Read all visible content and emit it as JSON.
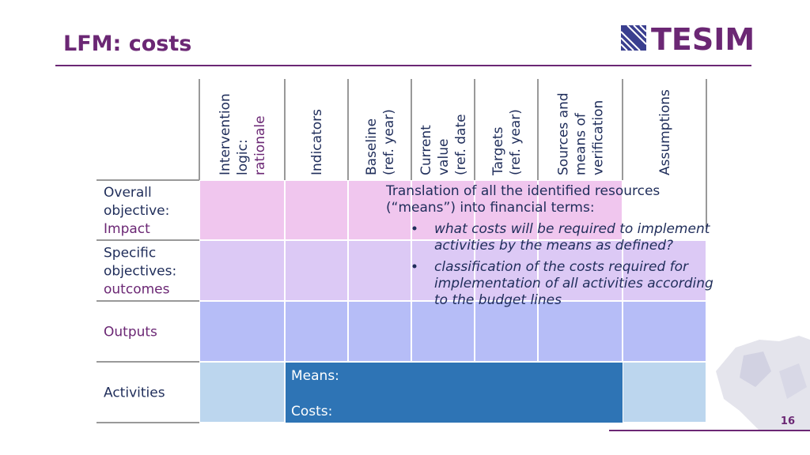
{
  "header": {
    "title": "LFM: costs",
    "logo": "TESIM"
  },
  "table": {
    "columns": [
      [
        "Intervention",
        "logic:",
        "rationale"
      ],
      [
        "Indicators"
      ],
      [
        "Baseline",
        "(ref. year)"
      ],
      [
        "Current",
        "value",
        "(ref. date"
      ],
      [
        "Targets",
        "(ref. year)"
      ],
      [
        "Sources and",
        "means of",
        "verification"
      ],
      [
        "Assumptions"
      ]
    ],
    "rows": [
      [
        "Overall",
        "objective:",
        "Impact"
      ],
      [
        "Specific",
        "objectives:",
        "outcomes"
      ],
      [
        "Outputs"
      ],
      [
        "Activities"
      ]
    ]
  },
  "activities": {
    "means": "Means:",
    "costs": "Costs:"
  },
  "callout": {
    "text": [
      "Translation of all the identified resources",
      "(“means”) into financial terms:"
    ],
    "bullets": [
      [
        "what costs will be required to implement",
        "activities by the means as defined?"
      ],
      [
        "classification of the costs required for",
        "implementation of all activities according",
        "to the budget lines"
      ]
    ]
  },
  "page_number": "16"
}
